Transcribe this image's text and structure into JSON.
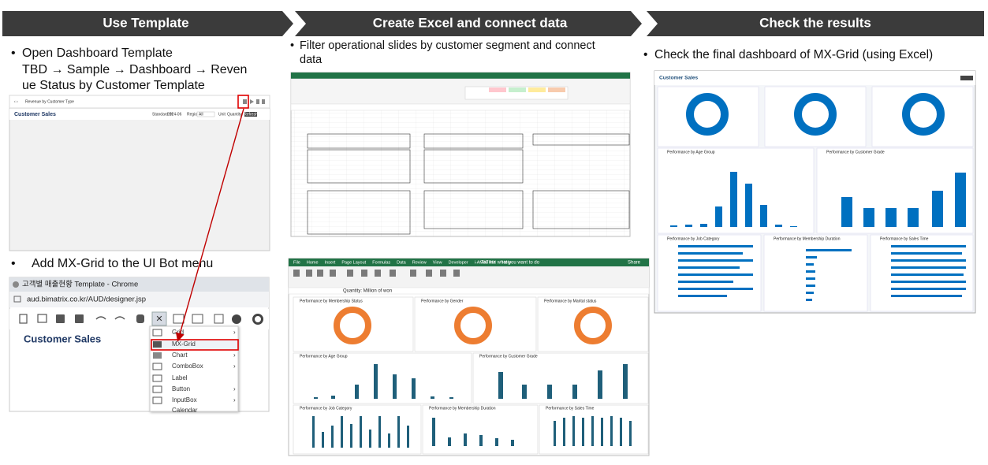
{
  "steps": [
    {
      "title": "Use Template"
    },
    {
      "title": "Create Excel and connect data"
    },
    {
      "title": "Check the results"
    }
  ],
  "step1": {
    "bullet1": [
      "Open Dashboard Template",
      "TBD → Sample → Dashboard → Reven",
      "ue Status by Customer Template"
    ],
    "bullet2": "Add MX-Grid to the UI Bot menu",
    "template_screen": {
      "tab": "Revenue by Customer Type",
      "title": "Customer Sales",
      "filters": [
        "Standard dt",
        "2024-06",
        "Region",
        "All",
        "Unit",
        "Quantity",
        "Refresh"
      ]
    },
    "designer_screen": {
      "window": "고객별 매출현황 Template - Chrome",
      "url": "aud.bimatrix.co.kr/AUD/designer.jsp",
      "title": "Customer Sales",
      "menu": [
        "Grid",
        "MX-Grid",
        "Chart",
        "ComboBox",
        "Label",
        "Button",
        "InputBox",
        "Calendar"
      ]
    }
  },
  "step2": {
    "bullet": [
      "Filter operational slides by customer segment and connect",
      "data"
    ],
    "excel_screen": {
      "tabs": [
        "File",
        "Home",
        "Insert",
        "Page Layout",
        "Formulas",
        "Data",
        "Review",
        "View",
        "Developer",
        "i-AMATRIX",
        "Help"
      ],
      "search": "Tell me what you want to do",
      "share": "Share",
      "quantity": "Quantity: Million of won",
      "panels": [
        "Performance by Membership Status",
        "Performance by Gender",
        "Performance by Marital status",
        "Performance by Age Group",
        "Performance by Customer Grade",
        "Performance by Job Category",
        "Performance by Membership Duration",
        "Performance by Sales Time"
      ]
    }
  },
  "step3": {
    "bullet": "Check the final dashboard of MX-Grid (using Excel)",
    "dashboard": {
      "title": "Customer Sales",
      "panels": [
        "Performance by Age Group",
        "Performance by Customer Grade",
        "Performance by Job Category",
        "Performance by Membership Duration",
        "Performance by Sales Time"
      ]
    }
  }
}
